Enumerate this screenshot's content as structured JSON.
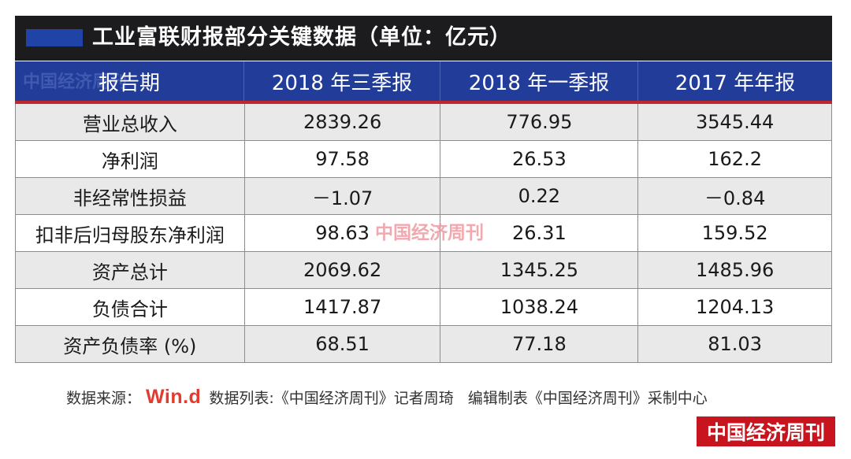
{
  "title": "工业富联财报部分关键数据（单位：亿元）",
  "table": {
    "header": [
      "报告期",
      "2018 年三季报",
      "2018 年一季报",
      "2017 年年报"
    ],
    "rows": [
      [
        "营业总收入",
        "2839.26",
        "776.95",
        "3545.44"
      ],
      [
        "净利润",
        "97.58",
        "26.53",
        "162.2"
      ],
      [
        "非经常性损益",
        "－1.07",
        "0.22",
        "－0.84"
      ],
      [
        "扣非后归母股东净利润",
        "98.63",
        "26.31",
        "159.52"
      ],
      [
        "资产总计",
        "2069.62",
        "1345.25",
        "1485.96"
      ],
      [
        "负债合计",
        "1417.87",
        "1038.24",
        "1204.13"
      ],
      [
        "资产负债率 (%)",
        "68.51",
        "77.18",
        "81.03"
      ]
    ]
  },
  "watermark": "中国经济周刊",
  "footer": {
    "source_label": "数据来源：",
    "source_logo": "Win.d",
    "compiled_by": "数据列表:《中国经济周刊》记者周琦",
    "edited_by": "编辑制表《中国经济周刊》采制中心"
  },
  "brand": "中国经济周刊",
  "colors": {
    "title_bg": "#1c1c1e",
    "header_bg": "#223c9a",
    "header_underline": "#c0272d",
    "brand_red": "#c8141e"
  }
}
